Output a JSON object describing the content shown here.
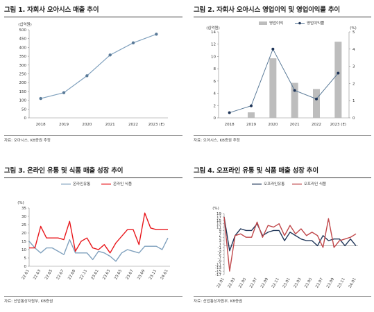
{
  "panels": [
    {
      "title": "그림 1. 자회사 오아시스 매출 추이",
      "source": "자료: 오아시스, KB증권 추정"
    },
    {
      "title": "그림 2. 자회사 오아시스 영업이익 및 영업이익률 추이",
      "source": "자료: 오아시스, KB증권 추정"
    },
    {
      "title": "그림 3. 온라인 유통 및 식품 매출 성장 추이",
      "source": "자료: 산업통상자원부, KB증권"
    },
    {
      "title": "그림 4. 오프라인 유통 및 식품 매출 성장 추이",
      "source": "자료: 산업통상자원부, KB증권"
    }
  ],
  "colors": {
    "navy": "#5a7a98",
    "steel": "#7fa0bd",
    "red": "#e8161b",
    "darkred": "#c0474a",
    "darknavy": "#1f3558",
    "bar": "#bdbdbd"
  },
  "chart_data": [
    {
      "type": "line",
      "unit_label": "(십억원)",
      "categories": [
        "2018",
        "2019",
        "2020",
        "2021",
        "2022",
        "2023 (E)"
      ],
      "series": [
        {
          "values": [
            110,
            143,
            239,
            357,
            426,
            475
          ]
        }
      ],
      "ylim": [
        0,
        500
      ],
      "yticks": [
        0,
        50,
        100,
        150,
        200,
        250,
        300,
        350,
        400,
        450,
        500
      ]
    },
    {
      "type": "bar+line",
      "unit_label_left": "(십억원)",
      "unit_label_right": "(%)",
      "categories": [
        "2018",
        "2019",
        "2020",
        "2021",
        "2022",
        "2023 (E)"
      ],
      "series": [
        {
          "name": "영업이익",
          "type": "bar",
          "axis": "left",
          "values": [
            0.0,
            0.9,
            9.7,
            5.7,
            4.7,
            12.4
          ]
        },
        {
          "name": "영업이익률",
          "type": "line",
          "axis": "right",
          "values": [
            0.3,
            0.7,
            4.0,
            1.6,
            1.1,
            2.6
          ]
        }
      ],
      "ylim_left": [
        0,
        14
      ],
      "yticks_left": [
        0,
        2,
        4,
        6,
        8,
        10,
        12,
        14
      ],
      "ylim_right": [
        0,
        5
      ],
      "yticks_right": [
        0,
        1,
        2,
        3,
        4,
        5
      ]
    },
    {
      "type": "line",
      "unit_label": "(%)",
      "categories": [
        "22.01",
        "22.02",
        "22.03",
        "22.04",
        "22.05",
        "22.06",
        "22.07",
        "22.08",
        "22.09",
        "22.10",
        "22.11",
        "22.12",
        "23.01",
        "23.02",
        "23.03",
        "23.04",
        "23.05",
        "23.06",
        "23.07",
        "23.08",
        "23.09",
        "23.10",
        "23.11",
        "23.12",
        "24.01"
      ],
      "xtick_labels": [
        "22.01",
        "22.03",
        "22.05",
        "22.07",
        "22.09",
        "22.11",
        "23.01",
        "23.03",
        "23.05",
        "23.07",
        "23.09",
        "23.11",
        "24.01"
      ],
      "series": [
        {
          "name": "온라인유통",
          "values": [
            15,
            11,
            8,
            11,
            11,
            9,
            7,
            16,
            8,
            8,
            8,
            4,
            9,
            8,
            6,
            3,
            8,
            10,
            9,
            8,
            12,
            12,
            12,
            10,
            17
          ]
        },
        {
          "name": "온라인 식품",
          "values": [
            11,
            11,
            24,
            17,
            17,
            17,
            16,
            27,
            9,
            15,
            17,
            11,
            10,
            13,
            8,
            14,
            18,
            22,
            22,
            13,
            32,
            23,
            22,
            22,
            22
          ]
        }
      ],
      "ylim": [
        0,
        35
      ],
      "yticks": [
        0,
        5,
        10,
        15,
        20,
        25,
        30,
        35
      ]
    },
    {
      "type": "line",
      "unit_label": "(%)",
      "categories": [
        "22.01",
        "22.02",
        "22.03",
        "22.04",
        "22.05",
        "22.06",
        "22.07",
        "22.08",
        "22.09",
        "22.10",
        "22.11",
        "22.12",
        "23.01",
        "23.02",
        "23.03",
        "23.04",
        "23.05",
        "23.06",
        "23.07",
        "23.08",
        "23.09",
        "23.10",
        "23.11",
        "23.12",
        "24.01"
      ],
      "xtick_labels": [
        "22.01",
        "22.03",
        "22.05",
        "22.07",
        "22.09",
        "22.11",
        "23.01",
        "23.03",
        "23.05",
        "23.07",
        "23.09",
        "23.11",
        "24.01"
      ],
      "series": [
        {
          "name": "오프라인유통",
          "values": [
            17,
            -3,
            6,
            10,
            9,
            9,
            13,
            6,
            8,
            9,
            9,
            3,
            8,
            6,
            4,
            3,
            3,
            0,
            6,
            3,
            4,
            4,
            0,
            4,
            0
          ]
        },
        {
          "name": "오프라인 식품",
          "values": [
            17,
            -15,
            6,
            7,
            5,
            5,
            14,
            5,
            12,
            11,
            13,
            6,
            12,
            7,
            10,
            6,
            8,
            6,
            -1,
            16,
            -1,
            3,
            4,
            5,
            7
          ]
        }
      ],
      "ylim": [
        -17,
        19
      ],
      "yticks": [
        -17,
        -15,
        -13,
        -11,
        -9,
        -7,
        -5,
        -3,
        -1,
        1,
        3,
        5,
        7,
        9,
        11,
        13,
        15,
        17,
        19
      ]
    }
  ]
}
